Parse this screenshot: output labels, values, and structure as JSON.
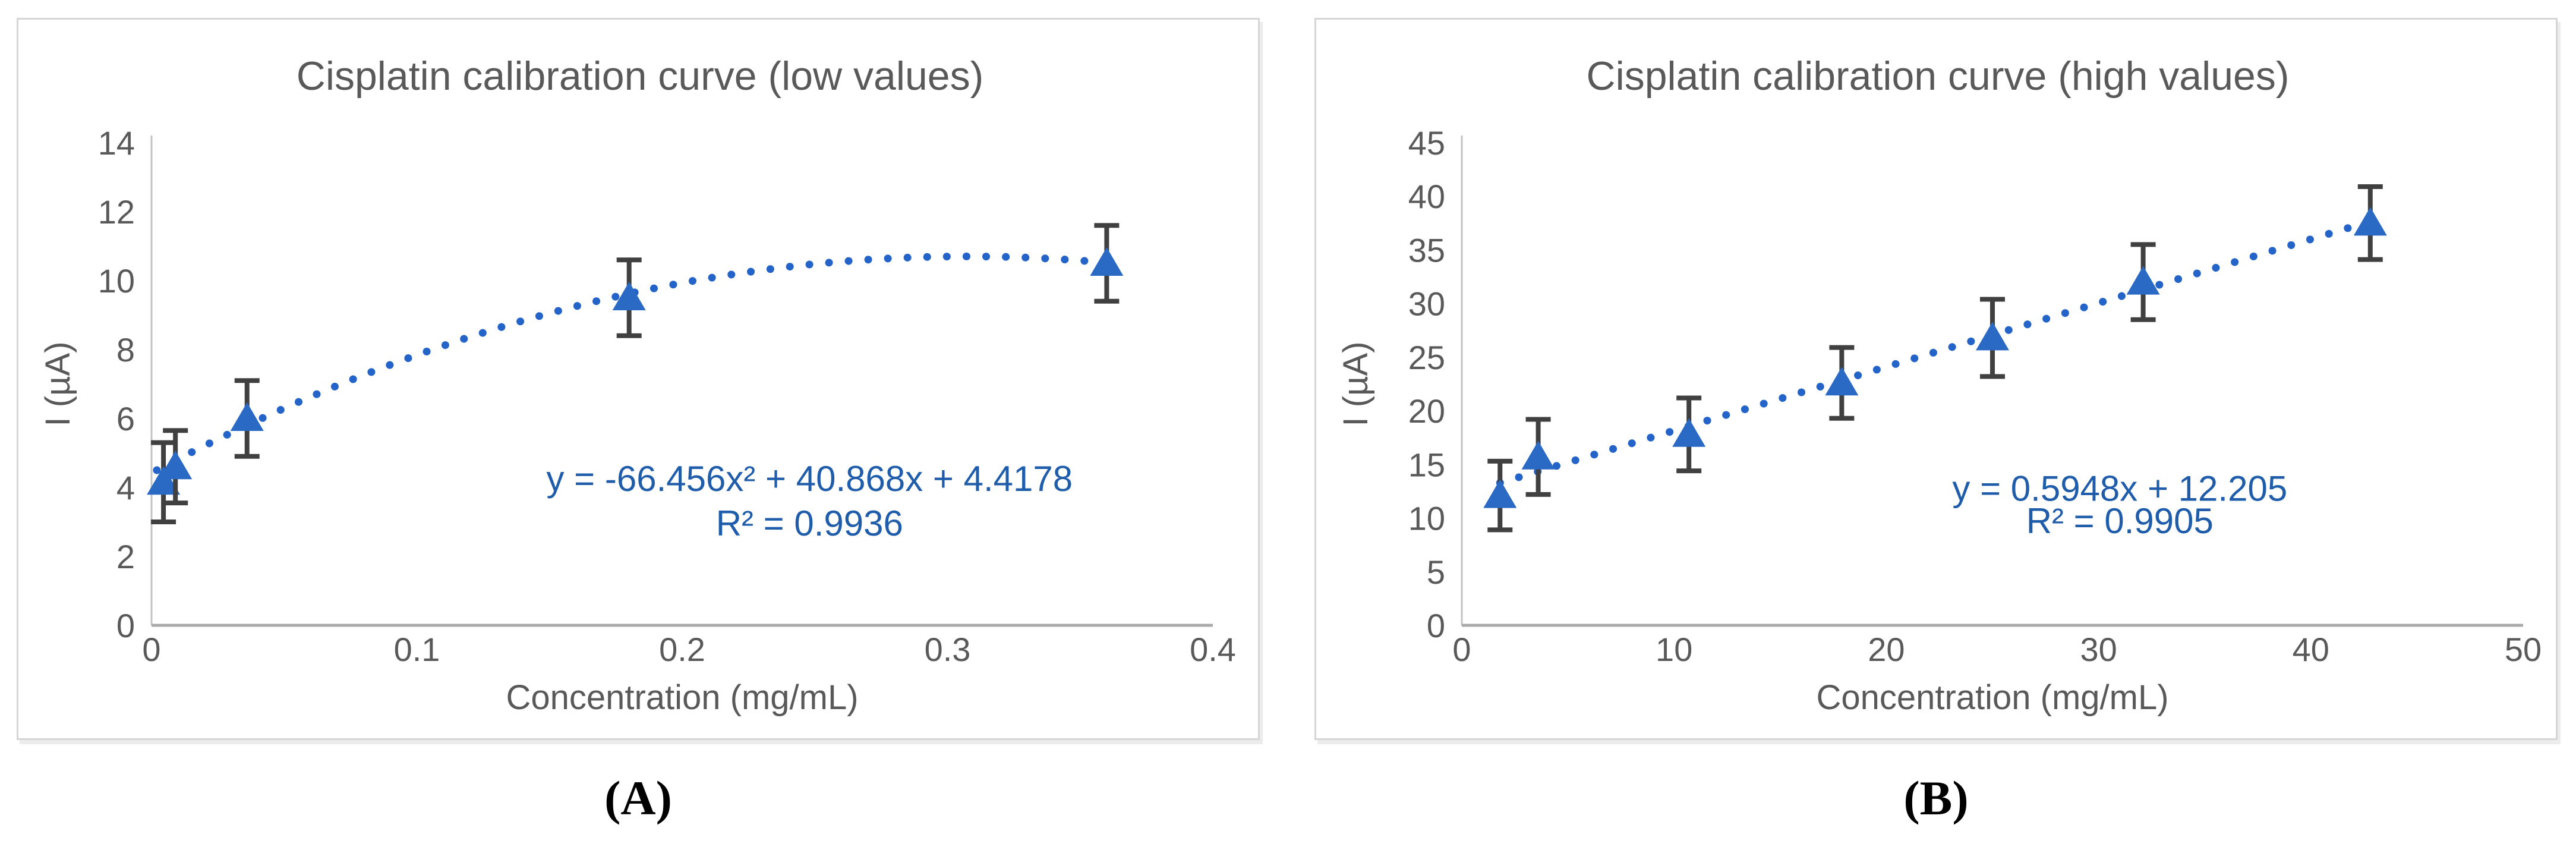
{
  "figure": {
    "description": "Two-panel cisplatin calibration figure"
  },
  "colors": {
    "marker": "#2a6ac4",
    "trendline": "#2464c8",
    "equation_text": "#1f5dab",
    "error_bar": "#404040",
    "chart_text": "#595959",
    "y_axis_line": "#c3c3c3",
    "x_axis_line": "#a9a9a9",
    "panel_border": "#d6d6d6",
    "background": "#ffffff",
    "caption_text": "#000000"
  },
  "chart_data": [
    {
      "type": "scatter",
      "caption": "(A)",
      "title": "Cisplatin calibration curve (low values)",
      "xlabel": "Concentration (mg/mL)",
      "ylabel": "I (µA)",
      "x_min": 0,
      "x_max": 0.4,
      "y_min": 0,
      "y_max": 14,
      "x_tick_labels": [
        "0",
        "0.1",
        "0.2",
        "0.3",
        "0.4"
      ],
      "x_tick_values": [
        0,
        0.1,
        0.2,
        0.3,
        0.4
      ],
      "y_tick_labels": [
        "0",
        "2",
        "4",
        "6",
        "8",
        "10",
        "12",
        "14"
      ],
      "y_tick_values": [
        0,
        2,
        4,
        6,
        8,
        10,
        12,
        14
      ],
      "grid": false,
      "legend": "none",
      "points": [
        {
          "x": 0.0045,
          "y": 4.15,
          "err": 1.15
        },
        {
          "x": 0.009,
          "y": 4.6,
          "err": 1.05
        },
        {
          "x": 0.036,
          "y": 6.0,
          "err": 1.1
        },
        {
          "x": 0.18,
          "y": 9.5,
          "err": 1.1
        },
        {
          "x": 0.36,
          "y": 10.5,
          "err": 1.1
        }
      ],
      "trendline": {
        "style": "dotted",
        "kind": "poly2",
        "a": -66.456,
        "b": 40.868,
        "c": 4.4178,
        "x_start": 0.002,
        "x_end": 0.36
      },
      "equation": "y = -66.456x² + 40.868x + 4.4178",
      "r_squared": "R² = 0.9936",
      "equation_anchor": {
        "x": 0.248,
        "y": 3.9
      },
      "r_squared_anchor": {
        "x": 0.248,
        "y": 2.6
      }
    },
    {
      "type": "scatter",
      "caption": "(B)",
      "title": "Cisplatin calibration curve (high values)",
      "xlabel": "Concentration (mg/mL)",
      "ylabel": "I (µA)",
      "x_min": 0,
      "x_max": 50,
      "y_min": 0,
      "y_max": 45,
      "x_tick_labels": [
        "0",
        "10",
        "20",
        "30",
        "40",
        "50"
      ],
      "x_tick_values": [
        0,
        10,
        20,
        30,
        40,
        50
      ],
      "y_tick_labels": [
        "0",
        "5",
        "10",
        "15",
        "20",
        "25",
        "30",
        "35",
        "40",
        "45"
      ],
      "y_tick_values": [
        0,
        5,
        10,
        15,
        20,
        25,
        30,
        35,
        40,
        45
      ],
      "grid": false,
      "legend": "none",
      "points": [
        {
          "x": 1.8,
          "y": 12.1,
          "err": 3.2
        },
        {
          "x": 3.6,
          "y": 15.7,
          "err": 3.5
        },
        {
          "x": 10.7,
          "y": 17.8,
          "err": 3.4
        },
        {
          "x": 17.9,
          "y": 22.6,
          "err": 3.3
        },
        {
          "x": 25.0,
          "y": 26.8,
          "err": 3.6
        },
        {
          "x": 32.1,
          "y": 32.0,
          "err": 3.5
        },
        {
          "x": 42.8,
          "y": 37.5,
          "err": 3.4
        }
      ],
      "trendline": {
        "style": "dotted",
        "kind": "linear",
        "m": 0.5948,
        "b": 12.205,
        "x_start": 1.8,
        "x_end": 42.8
      },
      "equation": "y = 0.5948x + 12.205",
      "r_squared": "R² = 0.9905",
      "equation_anchor": {
        "x": 31,
        "y": 11.6
      },
      "r_squared_anchor": {
        "x": 31,
        "y": 8.6
      }
    }
  ]
}
